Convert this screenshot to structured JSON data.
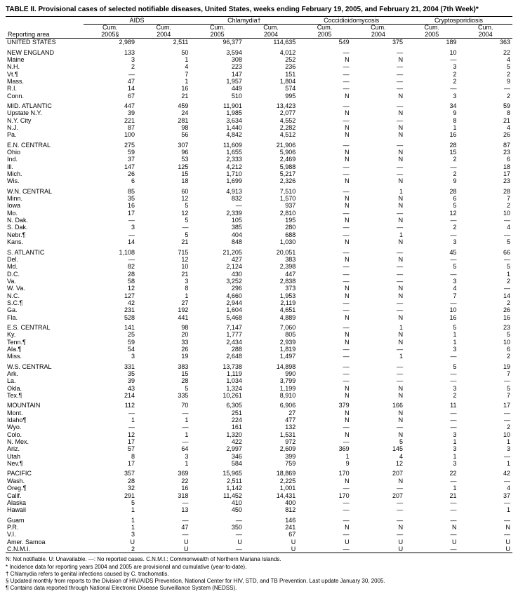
{
  "title": "TABLE II. Provisional cases of selected notifiable diseases, United States, weeks ending February 19, 2005, and February 21, 2004 (7th Week)*",
  "diseases": [
    "AIDS",
    "Chlamydia†",
    "Coccidioidomycosis",
    "Cryptosporidiosis"
  ],
  "sub_headers": [
    "Cum.\n2005§",
    "Cum.\n2004",
    "Cum.\n2005",
    "Cum.\n2004",
    "Cum.\n2005",
    "Cum.\n2004",
    "Cum.\n2005",
    "Cum.\n2004"
  ],
  "area_header": "Reporting area",
  "groups": [
    {
      "rows": [
        [
          "UNITED STATES",
          "2,989",
          "2,511",
          "96,377",
          "114,635",
          "549",
          "375",
          "189",
          "363"
        ]
      ]
    },
    {
      "rows": [
        [
          "NEW ENGLAND",
          "133",
          "50",
          "3,594",
          "4,012",
          "—",
          "—",
          "10",
          "22"
        ],
        [
          "Maine",
          "3",
          "1",
          "308",
          "252",
          "N",
          "N",
          "—",
          "4"
        ],
        [
          "N.H.",
          "2",
          "4",
          "223",
          "236",
          "—",
          "—",
          "3",
          "5"
        ],
        [
          "Vt.¶",
          "—",
          "7",
          "147",
          "151",
          "—",
          "—",
          "2",
          "2"
        ],
        [
          "Mass.",
          "47",
          "1",
          "1,957",
          "1,804",
          "—",
          "—",
          "2",
          "9"
        ],
        [
          "R.I.",
          "14",
          "16",
          "449",
          "574",
          "—",
          "—",
          "—",
          "—"
        ],
        [
          "Conn.",
          "67",
          "21",
          "510",
          "995",
          "N",
          "N",
          "3",
          "2"
        ]
      ]
    },
    {
      "rows": [
        [
          "MID. ATLANTIC",
          "447",
          "459",
          "11,901",
          "13,423",
          "—",
          "—",
          "34",
          "59"
        ],
        [
          "Upstate N.Y.",
          "39",
          "24",
          "1,985",
          "2,077",
          "N",
          "N",
          "9",
          "8"
        ],
        [
          "N.Y. City",
          "221",
          "281",
          "3,634",
          "4,552",
          "—",
          "—",
          "8",
          "21"
        ],
        [
          "N.J.",
          "87",
          "98",
          "1,440",
          "2,282",
          "N",
          "N",
          "1",
          "4"
        ],
        [
          "Pa.",
          "100",
          "56",
          "4,842",
          "4,512",
          "N",
          "N",
          "16",
          "26"
        ]
      ]
    },
    {
      "rows": [
        [
          "E.N. CENTRAL",
          "275",
          "307",
          "11,609",
          "21,906",
          "—",
          "—",
          "28",
          "87"
        ],
        [
          "Ohio",
          "59",
          "96",
          "1,655",
          "5,906",
          "N",
          "N",
          "15",
          "23"
        ],
        [
          "Ind.",
          "37",
          "53",
          "2,333",
          "2,469",
          "N",
          "N",
          "2",
          "6"
        ],
        [
          "Ill.",
          "147",
          "125",
          "4,212",
          "5,988",
          "—",
          "—",
          "—",
          "18"
        ],
        [
          "Mich.",
          "26",
          "15",
          "1,710",
          "5,217",
          "—",
          "—",
          "2",
          "17"
        ],
        [
          "Wis.",
          "6",
          "18",
          "1,699",
          "2,326",
          "N",
          "N",
          "9",
          "23"
        ]
      ]
    },
    {
      "rows": [
        [
          "W.N. CENTRAL",
          "85",
          "60",
          "4,913",
          "7,510",
          "—",
          "1",
          "28",
          "28"
        ],
        [
          "Minn.",
          "35",
          "12",
          "832",
          "1,570",
          "N",
          "N",
          "6",
          "7"
        ],
        [
          "Iowa",
          "16",
          "5",
          "—",
          "937",
          "N",
          "N",
          "5",
          "2"
        ],
        [
          "Mo.",
          "17",
          "12",
          "2,339",
          "2,810",
          "—",
          "—",
          "12",
          "10"
        ],
        [
          "N. Dak.",
          "—",
          "5",
          "105",
          "195",
          "N",
          "N",
          "—",
          "—"
        ],
        [
          "S. Dak.",
          "3",
          "—",
          "385",
          "280",
          "—",
          "—",
          "2",
          "4"
        ],
        [
          "Nebr.¶",
          "—",
          "5",
          "404",
          "688",
          "—",
          "1",
          "—",
          "—"
        ],
        [
          "Kans.",
          "14",
          "21",
          "848",
          "1,030",
          "N",
          "N",
          "3",
          "5"
        ]
      ]
    },
    {
      "rows": [
        [
          "S. ATLANTIC",
          "1,108",
          "715",
          "21,205",
          "20,051",
          "—",
          "—",
          "45",
          "66"
        ],
        [
          "Del.",
          "—",
          "12",
          "427",
          "383",
          "N",
          "N",
          "—",
          "—"
        ],
        [
          "Md.",
          "82",
          "10",
          "2,124",
          "2,398",
          "—",
          "—",
          "5",
          "5"
        ],
        [
          "D.C.",
          "28",
          "21",
          "430",
          "447",
          "—",
          "—",
          "—",
          "1"
        ],
        [
          "Va.",
          "58",
          "3",
          "3,252",
          "2,838",
          "—",
          "—",
          "3",
          "2"
        ],
        [
          "W. Va.",
          "12",
          "8",
          "296",
          "373",
          "N",
          "N",
          "4",
          "—"
        ],
        [
          "N.C.",
          "127",
          "1",
          "4,660",
          "1,953",
          "N",
          "N",
          "7",
          "14"
        ],
        [
          "S.C.¶",
          "42",
          "27",
          "2,944",
          "2,119",
          "—",
          "—",
          "—",
          "2"
        ],
        [
          "Ga.",
          "231",
          "192",
          "1,604",
          "4,651",
          "—",
          "—",
          "10",
          "26"
        ],
        [
          "Fla.",
          "528",
          "441",
          "5,468",
          "4,889",
          "N",
          "N",
          "16",
          "16"
        ]
      ]
    },
    {
      "rows": [
        [
          "E.S. CENTRAL",
          "141",
          "98",
          "7,147",
          "7,060",
          "—",
          "1",
          "5",
          "23"
        ],
        [
          "Ky.",
          "25",
          "20",
          "1,777",
          "805",
          "N",
          "N",
          "1",
          "5"
        ],
        [
          "Tenn.¶",
          "59",
          "33",
          "2,434",
          "2,939",
          "N",
          "N",
          "1",
          "10"
        ],
        [
          "Ala.¶",
          "54",
          "26",
          "288",
          "1,819",
          "—",
          "—",
          "3",
          "6"
        ],
        [
          "Miss.",
          "3",
          "19",
          "2,648",
          "1,497",
          "—",
          "1",
          "—",
          "2"
        ]
      ]
    },
    {
      "rows": [
        [
          "W.S. CENTRAL",
          "331",
          "383",
          "13,738",
          "14,898",
          "—",
          "—",
          "5",
          "19"
        ],
        [
          "Ark.",
          "35",
          "15",
          "1,119",
          "990",
          "—",
          "—",
          "—",
          "7"
        ],
        [
          "La.",
          "39",
          "28",
          "1,034",
          "3,799",
          "—",
          "—",
          "—",
          "—"
        ],
        [
          "Okla.",
          "43",
          "5",
          "1,324",
          "1,199",
          "N",
          "N",
          "3",
          "5"
        ],
        [
          "Tex.¶",
          "214",
          "335",
          "10,261",
          "8,910",
          "N",
          "N",
          "2",
          "7"
        ]
      ]
    },
    {
      "rows": [
        [
          "MOUNTAIN",
          "112",
          "70",
          "6,305",
          "6,906",
          "379",
          "166",
          "11",
          "17"
        ],
        [
          "Mont.",
          "—",
          "—",
          "251",
          "27",
          "N",
          "N",
          "—",
          "—"
        ],
        [
          "Idaho¶",
          "1",
          "1",
          "224",
          "477",
          "N",
          "N",
          "—",
          "—"
        ],
        [
          "Wyo.",
          "—",
          "—",
          "161",
          "132",
          "—",
          "—",
          "—",
          "2"
        ],
        [
          "Colo.",
          "12",
          "1",
          "1,320",
          "1,531",
          "N",
          "N",
          "3",
          "10"
        ],
        [
          "N. Mex.",
          "17",
          "—",
          "422",
          "972",
          "—",
          "5",
          "1",
          "1"
        ],
        [
          "Ariz.",
          "57",
          "64",
          "2,997",
          "2,609",
          "369",
          "145",
          "3",
          "3"
        ],
        [
          "Utah",
          "8",
          "3",
          "346",
          "399",
          "1",
          "4",
          "1",
          "—"
        ],
        [
          "Nev.¶",
          "17",
          "1",
          "584",
          "759",
          "9",
          "12",
          "3",
          "1"
        ]
      ]
    },
    {
      "rows": [
        [
          "PACIFIC",
          "357",
          "369",
          "15,965",
          "18,869",
          "170",
          "207",
          "22",
          "42"
        ],
        [
          "Wash.",
          "28",
          "22",
          "2,511",
          "2,225",
          "N",
          "N",
          "—",
          "—"
        ],
        [
          "Oreg.¶",
          "32",
          "16",
          "1,142",
          "1,001",
          "—",
          "—",
          "1",
          "4"
        ],
        [
          "Calif.",
          "291",
          "318",
          "11,452",
          "14,431",
          "170",
          "207",
          "21",
          "37"
        ],
        [
          "Alaska",
          "5",
          "—",
          "410",
          "400",
          "—",
          "—",
          "—",
          "—"
        ],
        [
          "Hawaii",
          "1",
          "13",
          "450",
          "812",
          "—",
          "—",
          "—",
          "1"
        ]
      ]
    },
    {
      "rows": [
        [
          "Guam",
          "1",
          "—",
          "—",
          "146",
          "—",
          "—",
          "—",
          "—"
        ],
        [
          "P.R.",
          "1",
          "47",
          "350",
          "241",
          "N",
          "N",
          "N",
          "N"
        ],
        [
          "V.I.",
          "3",
          "—",
          "—",
          "67",
          "—",
          "—",
          "—",
          "—"
        ],
        [
          "Amer. Samoa",
          "U",
          "U",
          "U",
          "U",
          "U",
          "U",
          "U",
          "U"
        ],
        [
          "C.N.M.I.",
          "2",
          "U",
          "—",
          "U",
          "—",
          "U",
          "—",
          "U"
        ]
      ]
    }
  ],
  "footnotes": {
    "key": "N: Not notifiable.        U: Unavailable.             —: No reported cases.             C.N.M.I.: Commonwealth of Northern Mariana Islands.",
    "lines": [
      "* Incidence data for reporting years 2004 and 2005 are provisional and cumulative (year-to-date).",
      "† Chlamydia refers to genital infections caused by C. trachomatis.",
      "§ Updated monthly from reports to the Division of HIV/AIDS Prevention, National Center for HIV, STD, and TB Prevention. Last update January 30, 2005.",
      "¶ Contains data reported through National Electronic Disease Surveillance System (NEDSS)."
    ]
  }
}
